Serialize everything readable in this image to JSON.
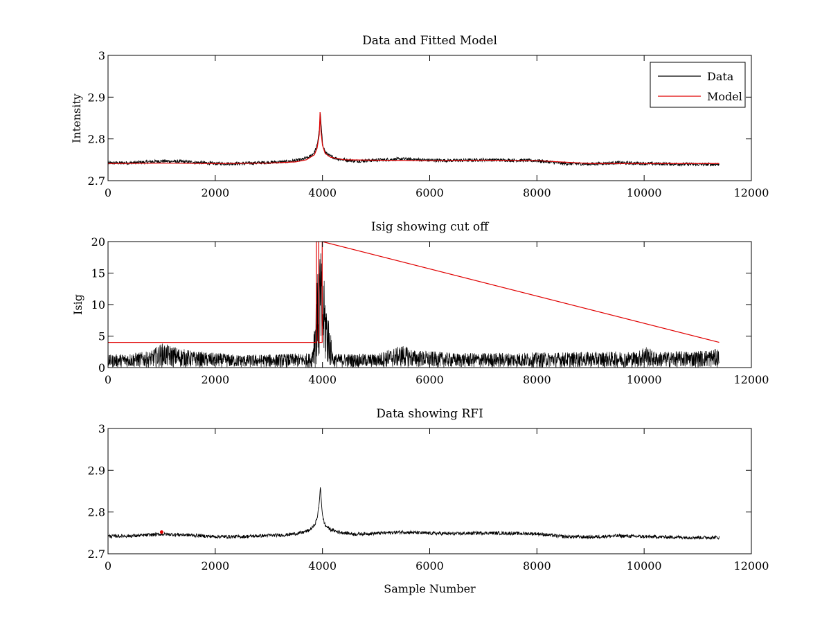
{
  "colors": {
    "data": "#000000",
    "model": "#e00000",
    "background": "#ffffff"
  },
  "chart_data": [
    {
      "type": "line",
      "title": "Data and Fitted Model",
      "xlabel": "",
      "ylabel": "Intensity",
      "xlim": [
        0,
        12000
      ],
      "ylim": [
        2.7,
        3.0
      ],
      "xticks": [
        0,
        2000,
        4000,
        6000,
        8000,
        10000,
        12000
      ],
      "xtick_labels": [
        "0",
        "2000",
        "4000",
        "6000",
        "8000",
        "10000",
        "12000"
      ],
      "yticks": [
        2.7,
        2.8,
        2.9,
        3.0
      ],
      "ytick_labels": [
        "2.7",
        "2.8",
        "2.9",
        "3"
      ],
      "legend": {
        "position": "top-right",
        "entries": [
          "Data",
          "Model"
        ]
      },
      "series": [
        {
          "name": "Data",
          "color": "#000000",
          "noise": 0.004,
          "x": [
            0,
            500,
            1000,
            1500,
            2000,
            2500,
            3000,
            3300,
            3600,
            3750,
            3850,
            3900,
            3940,
            3960,
            4000,
            4050,
            4150,
            4300,
            4600,
            5000,
            5500,
            6000,
            6500,
            7000,
            7500,
            8000,
            8500,
            9000,
            9500,
            10000,
            10500,
            11000,
            11400
          ],
          "values": [
            2.742,
            2.743,
            2.747,
            2.745,
            2.741,
            2.741,
            2.744,
            2.745,
            2.75,
            2.756,
            2.768,
            2.785,
            2.82,
            2.858,
            2.79,
            2.768,
            2.758,
            2.752,
            2.747,
            2.749,
            2.752,
            2.749,
            2.748,
            2.75,
            2.749,
            2.748,
            2.741,
            2.74,
            2.743,
            2.741,
            2.74,
            2.739,
            2.739
          ]
        },
        {
          "name": "Model",
          "color": "#e00000",
          "noise": 0,
          "x": [
            0,
            1000,
            2000,
            3000,
            3500,
            3700,
            3850,
            3900,
            3940,
            3955,
            3970,
            4000,
            4050,
            4150,
            4400,
            5000,
            6000,
            7000,
            8000,
            9000,
            10000,
            11400
          ],
          "values": [
            2.741,
            2.742,
            2.741,
            2.742,
            2.745,
            2.75,
            2.762,
            2.778,
            2.81,
            2.864,
            2.82,
            2.785,
            2.765,
            2.756,
            2.75,
            2.749,
            2.748,
            2.749,
            2.748,
            2.741,
            2.741,
            2.741
          ]
        }
      ]
    },
    {
      "type": "line",
      "title": "Isig showing cut off",
      "xlabel": "",
      "ylabel": "Isig",
      "xlim": [
        0,
        12000
      ],
      "ylim": [
        0,
        20
      ],
      "xticks": [
        0,
        2000,
        4000,
        6000,
        8000,
        10000,
        12000
      ],
      "xtick_labels": [
        "0",
        "2000",
        "4000",
        "6000",
        "8000",
        "10000",
        "12000"
      ],
      "yticks": [
        0,
        5,
        10,
        15,
        20
      ],
      "ytick_labels": [
        "0",
        "5",
        "10",
        "15",
        "20"
      ],
      "series": [
        {
          "name": "Isig",
          "color": "#000000",
          "style": "noise-band",
          "x": [
            0,
            800,
            1000,
            1300,
            1600,
            2500,
            3800,
            3950,
            4200,
            5000,
            5500,
            5700,
            6500,
            8000,
            9900,
            10000,
            10200,
            11000,
            11400
          ],
          "values": [
            2.0,
            2.6,
            3.9,
            3.2,
            2.6,
            2.0,
            2.3,
            19.5,
            2.2,
            2.2,
            3.6,
            2.8,
            2.3,
            2.4,
            2.6,
            3.7,
            2.5,
            2.7,
            3.0
          ]
        },
        {
          "name": "Cut off",
          "color": "#e00000",
          "style": "line",
          "x": [
            0,
            3885,
            3885,
            3930,
            3930,
            3995,
            3995,
            11400
          ],
          "values": [
            4,
            4,
            20,
            20,
            4,
            4,
            20,
            4
          ]
        }
      ]
    },
    {
      "type": "line",
      "title": "Data showing RFI",
      "xlabel": "Sample Number",
      "ylabel": "",
      "xlim": [
        0,
        12000
      ],
      "ylim": [
        2.7,
        3.0
      ],
      "xticks": [
        0,
        2000,
        4000,
        6000,
        8000,
        10000,
        12000
      ],
      "xtick_labels": [
        "0",
        "2000",
        "4000",
        "6000",
        "8000",
        "10000",
        "12000"
      ],
      "yticks": [
        2.7,
        2.8,
        2.9,
        3.0
      ],
      "ytick_labels": [
        "2.7",
        "2.8",
        "2.9",
        "3"
      ],
      "series": [
        {
          "name": "Data",
          "color": "#000000",
          "noise": 0.004,
          "x": [
            0,
            500,
            1000,
            1500,
            2000,
            2500,
            3000,
            3300,
            3600,
            3750,
            3850,
            3900,
            3940,
            3960,
            4000,
            4050,
            4150,
            4300,
            4600,
            5000,
            5500,
            6000,
            6500,
            7000,
            7500,
            8000,
            8500,
            9000,
            9500,
            10000,
            10500,
            11000,
            11400
          ],
          "values": [
            2.742,
            2.743,
            2.747,
            2.745,
            2.741,
            2.741,
            2.744,
            2.745,
            2.75,
            2.756,
            2.768,
            2.785,
            2.82,
            2.862,
            2.79,
            2.768,
            2.758,
            2.752,
            2.747,
            2.749,
            2.752,
            2.749,
            2.748,
            2.75,
            2.749,
            2.748,
            2.741,
            2.74,
            2.743,
            2.741,
            2.74,
            2.739,
            2.739
          ]
        },
        {
          "name": "RFI",
          "color": "#e00000",
          "style": "marker",
          "x": [
            1000
          ],
          "values": [
            2.752
          ]
        }
      ]
    }
  ]
}
